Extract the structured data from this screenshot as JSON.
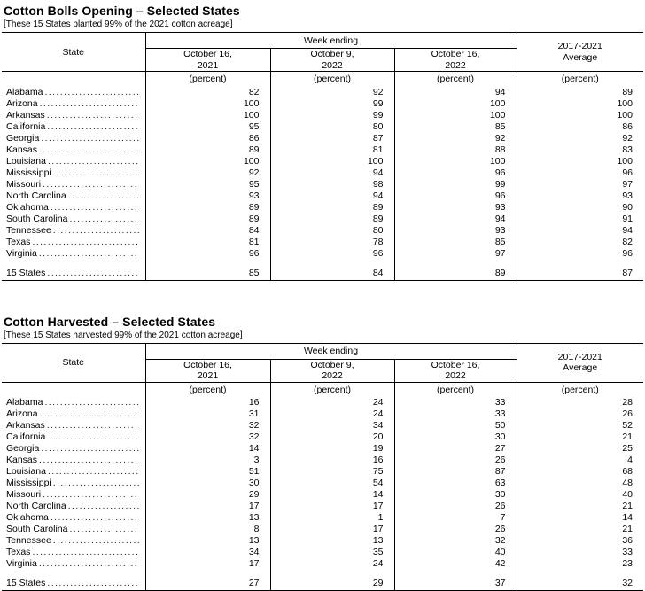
{
  "page": {
    "background": "#ffffff",
    "ink": "#000000"
  },
  "tables": [
    {
      "title": "Cotton Bolls Opening – Selected States",
      "subtitle": "[These 15 States planted 99% of the 2021 cotton acreage]",
      "header": {
        "state_label": "State",
        "week_ending_label": "Week ending",
        "week_columns": [
          [
            "October 16,",
            "2021"
          ],
          [
            "October 9,",
            "2022"
          ],
          [
            "October 16,",
            "2022"
          ]
        ],
        "average_lines": [
          "2017-2021",
          "Average"
        ],
        "unit_label": "(percent)"
      },
      "rows": [
        {
          "state": "Alabama",
          "values": [
            82,
            92,
            94,
            89
          ]
        },
        {
          "state": "Arizona",
          "values": [
            100,
            99,
            100,
            100
          ]
        },
        {
          "state": "Arkansas",
          "values": [
            100,
            99,
            100,
            100
          ]
        },
        {
          "state": "California",
          "values": [
            95,
            80,
            85,
            86
          ]
        },
        {
          "state": "Georgia",
          "values": [
            86,
            87,
            92,
            92
          ]
        },
        {
          "state": "Kansas",
          "values": [
            89,
            81,
            88,
            83
          ]
        },
        {
          "state": "Louisiana",
          "values": [
            100,
            100,
            100,
            100
          ]
        },
        {
          "state": "Mississippi",
          "values": [
            92,
            94,
            96,
            96
          ]
        },
        {
          "state": "Missouri",
          "values": [
            95,
            98,
            99,
            97
          ]
        },
        {
          "state": "North Carolina",
          "values": [
            93,
            94,
            96,
            93
          ]
        },
        {
          "state": "Oklahoma",
          "values": [
            89,
            89,
            93,
            90
          ]
        },
        {
          "state": "South Carolina",
          "values": [
            89,
            89,
            94,
            91
          ]
        },
        {
          "state": "Tennessee",
          "values": [
            84,
            80,
            93,
            94
          ]
        },
        {
          "state": "Texas",
          "values": [
            81,
            78,
            85,
            82
          ]
        },
        {
          "state": "Virginia",
          "values": [
            96,
            96,
            97,
            96
          ]
        }
      ],
      "total_row": {
        "state": "15 States",
        "values": [
          85,
          84,
          89,
          87
        ]
      }
    },
    {
      "title": "Cotton Harvested – Selected States",
      "subtitle": "[These 15 States harvested 99% of the 2021 cotton acreage]",
      "header": {
        "state_label": "State",
        "week_ending_label": "Week ending",
        "week_columns": [
          [
            "October 16,",
            "2021"
          ],
          [
            "October 9,",
            "2022"
          ],
          [
            "October 16,",
            "2022"
          ]
        ],
        "average_lines": [
          "2017-2021",
          "Average"
        ],
        "unit_label": "(percent)"
      },
      "rows": [
        {
          "state": "Alabama",
          "values": [
            16,
            24,
            33,
            28
          ]
        },
        {
          "state": "Arizona",
          "values": [
            31,
            24,
            33,
            26
          ]
        },
        {
          "state": "Arkansas",
          "values": [
            32,
            34,
            50,
            52
          ]
        },
        {
          "state": "California",
          "values": [
            32,
            20,
            30,
            21
          ]
        },
        {
          "state": "Georgia",
          "values": [
            14,
            19,
            27,
            25
          ]
        },
        {
          "state": "Kansas",
          "values": [
            3,
            16,
            26,
            4
          ]
        },
        {
          "state": "Louisiana",
          "values": [
            51,
            75,
            87,
            68
          ]
        },
        {
          "state": "Mississippi",
          "values": [
            30,
            54,
            63,
            48
          ]
        },
        {
          "state": "Missouri",
          "values": [
            29,
            14,
            30,
            40
          ]
        },
        {
          "state": "North Carolina",
          "values": [
            17,
            17,
            26,
            21
          ]
        },
        {
          "state": "Oklahoma",
          "values": [
            13,
            1,
            7,
            14
          ]
        },
        {
          "state": "South Carolina",
          "values": [
            8,
            17,
            26,
            21
          ]
        },
        {
          "state": "Tennessee",
          "values": [
            13,
            13,
            32,
            36
          ]
        },
        {
          "state": "Texas",
          "values": [
            34,
            35,
            40,
            33
          ]
        },
        {
          "state": "Virginia",
          "values": [
            17,
            24,
            42,
            23
          ]
        }
      ],
      "total_row": {
        "state": "15 States",
        "values": [
          27,
          29,
          37,
          32
        ]
      }
    }
  ]
}
